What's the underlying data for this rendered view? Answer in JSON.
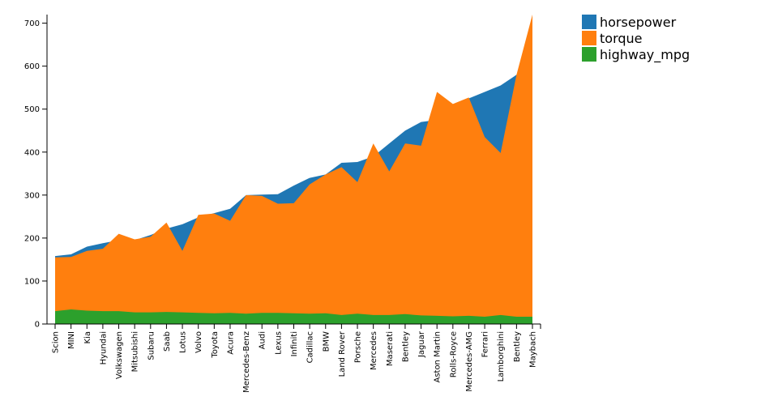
{
  "chart_data": {
    "type": "area",
    "mode": "overlapping",
    "title": "",
    "xlabel": "",
    "ylabel": "",
    "ylim": [
      0,
      720
    ],
    "yticks": [
      0,
      100,
      200,
      300,
      400,
      500,
      600,
      700
    ],
    "legend_position": "top-right",
    "categories": [
      "Scion",
      "MINI",
      "Kia",
      "Hyundai",
      "Volkswagen",
      "Mitsubishi",
      "Subaru",
      "Saab",
      "Lotus",
      "Volvo",
      "Toyota",
      "Acura",
      "Mercedes-Benz",
      "Audi",
      "Lexus",
      "Infiniti",
      "Cadillac",
      "BMW",
      "Land Rover",
      "Porsche",
      "Mercedes",
      "Maserati",
      "Bentley",
      "Jaguar",
      "Aston Martin",
      "Rolls-Royce",
      "Mercedes-AMG",
      "Ferrari",
      "Lamborghini",
      "Bentley",
      "Maybach"
    ],
    "series": [
      {
        "name": "horsepower",
        "color": "#1f77b4",
        "values": [
          158,
          162,
          180,
          188,
          195,
          195,
          207,
          222,
          232,
          248,
          258,
          268,
          300,
          301,
          302,
          322,
          340,
          348,
          375,
          377,
          390,
          420,
          450,
          470,
          475,
          500,
          525,
          540,
          555,
          580,
          600
        ]
      },
      {
        "name": "torque",
        "color": "#ff7f0e",
        "values": [
          155,
          156,
          170,
          175,
          210,
          197,
          203,
          236,
          170,
          254,
          257,
          240,
          300,
          298,
          280,
          281,
          325,
          348,
          365,
          330,
          420,
          355,
          420,
          415,
          540,
          512,
          527,
          435,
          398,
          580,
          720
        ]
      },
      {
        "name": "highway_mpg",
        "color": "#2ca02c",
        "values": [
          30,
          34,
          31,
          30,
          30,
          27,
          27,
          28,
          27,
          26,
          25,
          26,
          24,
          26,
          26,
          25,
          24,
          25,
          21,
          24,
          21,
          21,
          23,
          20,
          19,
          18,
          19,
          17,
          21,
          17,
          17
        ]
      }
    ]
  }
}
